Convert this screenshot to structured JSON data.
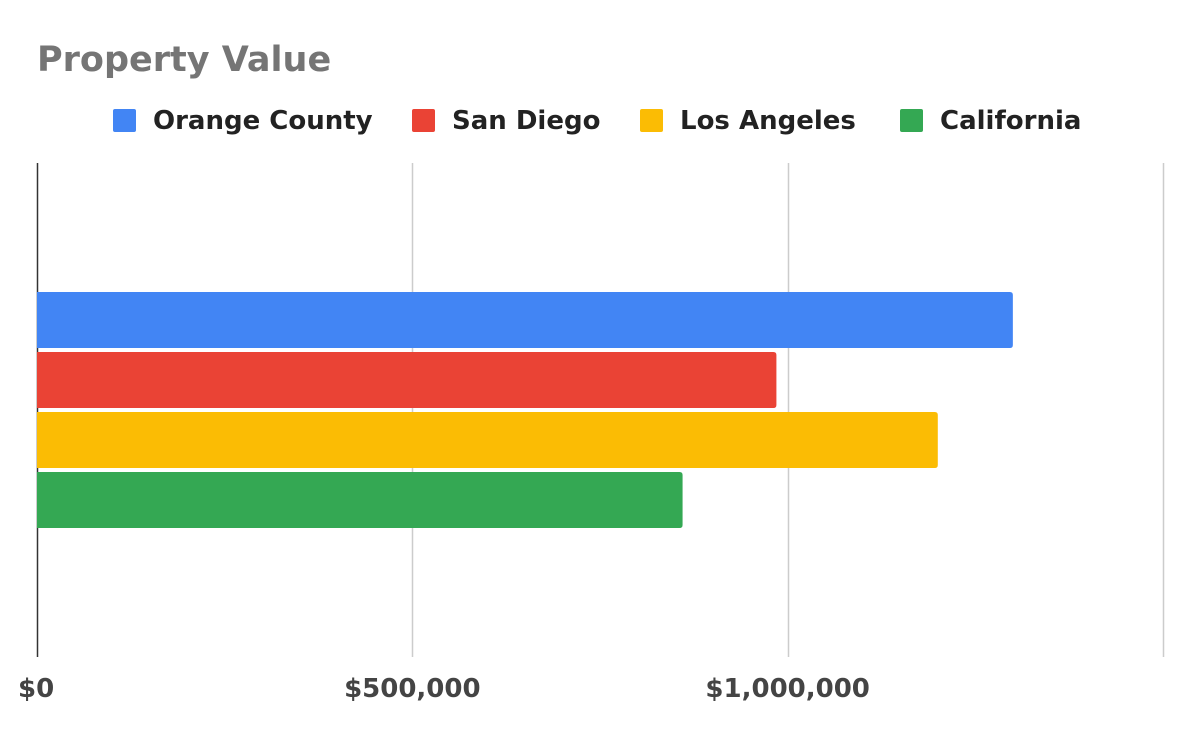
{
  "chart_data": {
    "type": "bar",
    "orientation": "horizontal",
    "title": "Property Value",
    "xlabel": "",
    "ylabel": "",
    "categories": [
      ""
    ],
    "series": [
      {
        "name": "Orange County",
        "values": [
          1300000
        ],
        "color": "#4285F4"
      },
      {
        "name": "San Diego",
        "values": [
          985000
        ],
        "color": "#EA4335"
      },
      {
        "name": "Los Angeles",
        "values": [
          1200000
        ],
        "color": "#FBBC04"
      },
      {
        "name": "California",
        "values": [
          860000
        ],
        "color": "#34A853"
      }
    ],
    "xlim": [
      0,
      1500000
    ],
    "ticks": [
      {
        "value": 0,
        "label": "$0"
      },
      {
        "value": 500000,
        "label": "$500,000"
      },
      {
        "value": 1000000,
        "label": "$1,000,000"
      }
    ],
    "gridlines": [
      0,
      500000,
      1000000,
      1500000
    ],
    "grid": true,
    "legend_position": "top"
  }
}
